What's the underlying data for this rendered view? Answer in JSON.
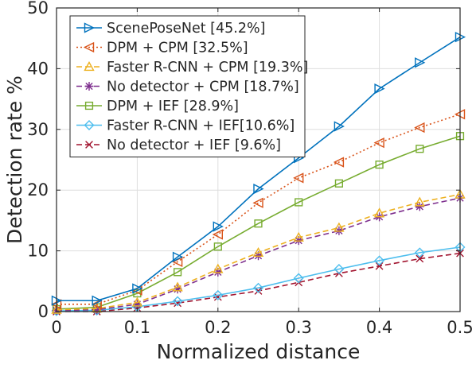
{
  "chart_data": {
    "type": "line",
    "title": "",
    "xlabel": "Normalized distance",
    "ylabel": "Detection rate %",
    "xlim": [
      0,
      0.5
    ],
    "ylim": [
      0,
      50
    ],
    "xticks": [
      0,
      0.1,
      0.2,
      0.3,
      0.4,
      0.5
    ],
    "xtick_labels": [
      "0",
      "0.1",
      "0.2",
      "0.3",
      "0.4",
      "0.5"
    ],
    "yticks": [
      0,
      10,
      20,
      30,
      40,
      50
    ],
    "ytick_labels": [
      "0",
      "10",
      "20",
      "30",
      "40",
      "50"
    ],
    "grid": true,
    "legend_position": "top-left",
    "x": [
      0,
      0.05,
      0.1,
      0.15,
      0.2,
      0.25,
      0.3,
      0.35,
      0.4,
      0.45,
      0.5
    ],
    "series": [
      {
        "name": "ScenePoseNet [45.2%]",
        "color": "#0072BD",
        "dash": "solid",
        "marker": "triangle-right",
        "values": [
          1.8,
          1.8,
          3.8,
          9.0,
          14.0,
          20.2,
          25.3,
          30.5,
          36.7,
          41.0,
          45.2
        ]
      },
      {
        "name": "DPM + CPM [32.5%]",
        "color": "#D95319",
        "dash": "dotted",
        "marker": "triangle-left",
        "values": [
          1.2,
          1.2,
          3.5,
          8.2,
          12.7,
          17.9,
          22.0,
          24.6,
          27.8,
          30.3,
          32.5
        ]
      },
      {
        "name": "Faster R-CNN + CPM [19.3%]",
        "color": "#EDB120",
        "dash": "dashed",
        "marker": "triangle-up",
        "values": [
          0.3,
          0.5,
          1.5,
          4.0,
          7.0,
          9.7,
          12.2,
          13.8,
          16.2,
          18.0,
          19.3
        ]
      },
      {
        "name": "No detector + CPM [18.7%]",
        "color": "#7E2F8E",
        "dash": "dashed",
        "marker": "star",
        "values": [
          0.2,
          0.3,
          1.2,
          3.7,
          6.5,
          9.2,
          11.7,
          13.3,
          15.6,
          17.3,
          18.7
        ]
      },
      {
        "name": "DPM + IEF [28.9%]",
        "color": "#77AC30",
        "dash": "solid",
        "marker": "square",
        "values": [
          0.4,
          0.7,
          3.0,
          6.5,
          10.7,
          14.5,
          18.0,
          21.1,
          24.2,
          26.8,
          28.9
        ]
      },
      {
        "name": "Faster R-CNN + IEF[10.6%]",
        "color": "#4DBEEE",
        "dash": "solid",
        "marker": "diamond",
        "values": [
          0.1,
          0.2,
          0.8,
          1.7,
          2.7,
          3.9,
          5.5,
          7.0,
          8.4,
          9.7,
          10.6
        ]
      },
      {
        "name": "No detector + IEF [9.6%]",
        "color": "#A2142F",
        "dash": "dashed",
        "marker": "x",
        "values": [
          0.0,
          0.0,
          0.6,
          1.4,
          2.4,
          3.4,
          4.8,
          6.3,
          7.5,
          8.7,
          9.6
        ]
      }
    ]
  }
}
